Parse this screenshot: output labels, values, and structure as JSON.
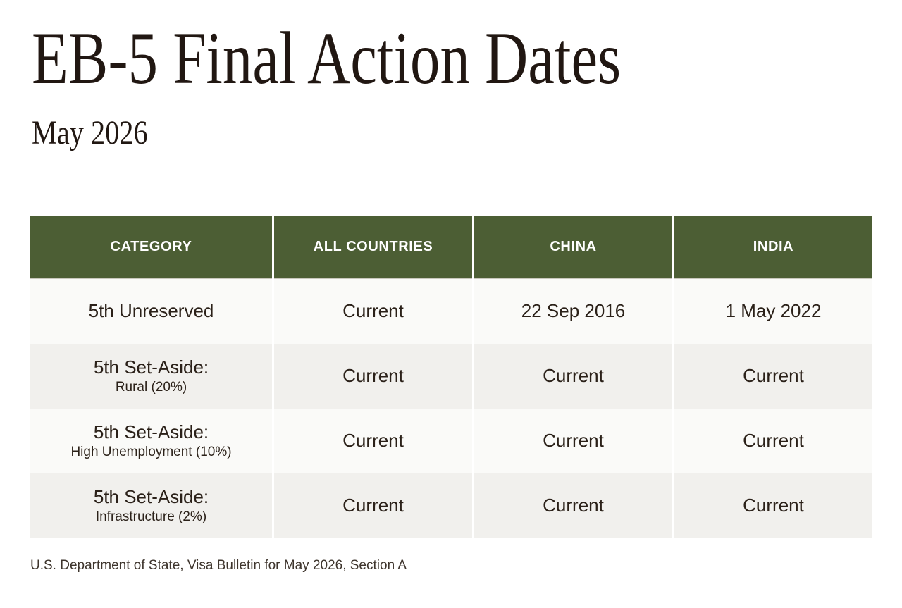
{
  "page": {
    "title": "EB-5 Final Action Dates",
    "subtitle": "May 2026",
    "source": "U.S. Department of State, Visa Bulletin for May 2026, Section A"
  },
  "colors": {
    "header_bg": "#4C5E34",
    "header_text": "#FFFFFF",
    "row_light": "#FAFAF8",
    "row_shaded": "#F1F0ED",
    "body_text": "#2B2119",
    "title_text": "#211712",
    "source_text": "#3E352D"
  },
  "table": {
    "columns": [
      "CATEGORY",
      "ALL COUNTRIES",
      "CHINA",
      "INDIA"
    ],
    "rows": [
      {
        "category": "5th Unreserved",
        "sub": "",
        "cells": [
          "Current",
          "22 Sep 2016",
          "1 May 2022"
        ]
      },
      {
        "category": "5th Set-Aside:",
        "sub": "Rural (20%)",
        "cells": [
          "Current",
          "Current",
          "Current"
        ]
      },
      {
        "category": "5th Set-Aside:",
        "sub": "High Unemployment (10%)",
        "cells": [
          "Current",
          "Current",
          "Current"
        ]
      },
      {
        "category": "5th Set-Aside:",
        "sub": "Infrastructure (2%)",
        "cells": [
          "Current",
          "Current",
          "Current"
        ]
      }
    ]
  },
  "chart_data": {
    "type": "table",
    "title": "EB-5 Final Action Dates",
    "subtitle": "May 2026",
    "columns": [
      "CATEGORY",
      "ALL COUNTRIES",
      "CHINA",
      "INDIA"
    ],
    "rows": [
      [
        "5th Unreserved",
        "Current",
        "22 Sep 2016",
        "1 May 2022"
      ],
      [
        "5th Set-Aside: Rural (20%)",
        "Current",
        "Current",
        "Current"
      ],
      [
        "5th Set-Aside: High Unemployment (10%)",
        "Current",
        "Current",
        "Current"
      ],
      [
        "5th Set-Aside: Infrastructure (2%)",
        "Current",
        "Current",
        "Current"
      ]
    ],
    "source": "U.S. Department of State, Visa Bulletin for May 2026, Section A",
    "layout": {
      "header_style": "dark-green-band",
      "row_striping": "light/shaded alternating",
      "grid": "white 3px column gaps, no outer border"
    }
  }
}
